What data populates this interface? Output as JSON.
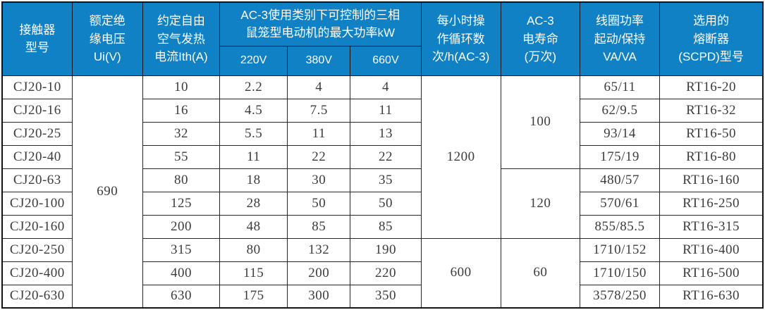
{
  "table": {
    "headers": {
      "contactor_model": "接触器\n型号",
      "rated_insulation_voltage": "额定绝\n缘电压\nUi(V)",
      "thermal_current": "约定自由\n空气发热\n电流Ith(A)",
      "ac3_power_group": "AC-3使用类别下可控制的三相\n鼠笼型电动机的最大功率kW",
      "voltage_cols": [
        "220V",
        "380V",
        "660V"
      ],
      "cycles_per_hour": "每小时操\n作循环数\n次/h(AC-3)",
      "electrical_life": "AC-3\n电寿命\n(万次)",
      "coil_power": "线圈功率\n起动/保持\nVA/VA",
      "fuse": "选用的\n熔断器\n(SCPD)型号"
    },
    "merged": {
      "insulation_voltage": [
        {
          "value": "690",
          "start": 0,
          "span": 10
        }
      ],
      "cycles": [
        {
          "value": "1200",
          "start": 0,
          "span": 7
        },
        {
          "value": "600",
          "start": 7,
          "span": 3
        }
      ],
      "life": [
        {
          "value": "100",
          "start": 0,
          "span": 4
        },
        {
          "value": "120",
          "start": 4,
          "span": 3
        },
        {
          "value": "60",
          "start": 7,
          "span": 3
        }
      ]
    },
    "rows": [
      {
        "model": "CJ20-10",
        "ith": "10",
        "kw_220v": "2.2",
        "kw_380v": "4",
        "kw_660v": "4",
        "coil_va": "65/11",
        "fuse": "RT16-20"
      },
      {
        "model": "CJ20-16",
        "ith": "16",
        "kw_220v": "4.5",
        "kw_380v": "7.5",
        "kw_660v": "11",
        "coil_va": "62/9.5",
        "fuse": "RT16-32"
      },
      {
        "model": "CJ20-25",
        "ith": "32",
        "kw_220v": "5.5",
        "kw_380v": "11",
        "kw_660v": "13",
        "coil_va": "93/14",
        "fuse": "RT16-50"
      },
      {
        "model": "CJ20-40",
        "ith": "55",
        "kw_220v": "11",
        "kw_380v": "22",
        "kw_660v": "22",
        "coil_va": "175/19",
        "fuse": "RT16-80"
      },
      {
        "model": "CJ20-63",
        "ith": "80",
        "kw_220v": "18",
        "kw_380v": "30",
        "kw_660v": "35",
        "coil_va": "480/57",
        "fuse": "RT16-160"
      },
      {
        "model": "CJ20-100",
        "ith": "125",
        "kw_220v": "28",
        "kw_380v": "50",
        "kw_660v": "50",
        "coil_va": "570/61",
        "fuse": "RT16-250"
      },
      {
        "model": "CJ20-160",
        "ith": "200",
        "kw_220v": "48",
        "kw_380v": "85",
        "kw_660v": "85",
        "coil_va": "855/85.5",
        "fuse": "RT16-315"
      },
      {
        "model": "CJ20-250",
        "ith": "315",
        "kw_220v": "80",
        "kw_380v": "132",
        "kw_660v": "190",
        "coil_va": "1710/152",
        "fuse": "RT16-400"
      },
      {
        "model": "CJ20-400",
        "ith": "400",
        "kw_220v": "115",
        "kw_380v": "200",
        "kw_660v": "220",
        "coil_va": "1710/150",
        "fuse": "RT16-500"
      },
      {
        "model": "CJ20-630",
        "ith": "630",
        "kw_220v": "175",
        "kw_380v": "300",
        "kw_660v": "350",
        "coil_va": "3578/250",
        "fuse": "RT16-630"
      }
    ],
    "colors": {
      "header_bg": "#1181c5",
      "header_text": "#ffffff",
      "border": "#262626",
      "cell_text": "#3c3c3c"
    }
  }
}
